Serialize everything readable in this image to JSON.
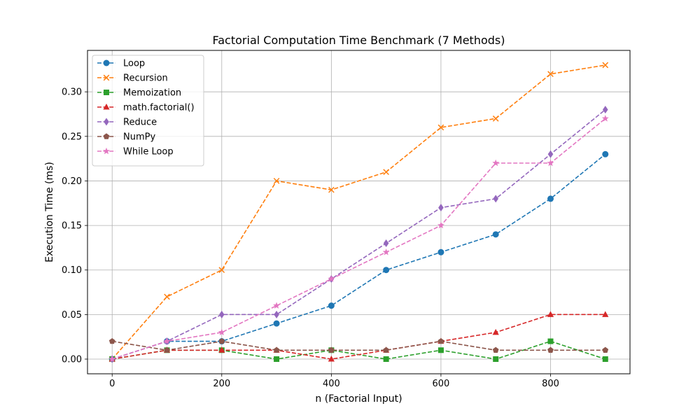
{
  "chart_data": {
    "type": "line",
    "title": "Factorial Computation Time Benchmark (7 Methods)",
    "xlabel": "n (Factorial Input)",
    "ylabel": "Execution Time (ms)",
    "x": [
      0,
      100,
      200,
      300,
      400,
      500,
      600,
      700,
      800,
      900
    ],
    "xlim": [
      -45,
      945
    ],
    "ylim": [
      -0.0165,
      0.3465
    ],
    "xticks": [
      0,
      200,
      400,
      600,
      800
    ],
    "xtick_labels": [
      "0",
      "200",
      "400",
      "600",
      "800"
    ],
    "yticks": [
      0.0,
      0.05,
      0.1,
      0.15,
      0.2,
      0.25,
      0.3
    ],
    "ytick_labels": [
      "0.00",
      "0.05",
      "0.10",
      "0.15",
      "0.20",
      "0.25",
      "0.30"
    ],
    "grid": true,
    "legend_position": "top-left",
    "series": [
      {
        "name": "Loop",
        "color": "#1f77b4",
        "marker": "circle",
        "values": [
          0.0,
          0.02,
          0.02,
          0.04,
          0.06,
          0.1,
          0.12,
          0.14,
          0.18,
          0.23
        ]
      },
      {
        "name": "Recursion",
        "color": "#ff7f0e",
        "marker": "x",
        "values": [
          0.0,
          0.07,
          0.1,
          0.2,
          0.19,
          0.21,
          0.26,
          0.27,
          0.32,
          0.33
        ]
      },
      {
        "name": "Memoization",
        "color": "#2ca02c",
        "marker": "square",
        "values": [
          0.0,
          0.01,
          0.01,
          0.0,
          0.01,
          0.0,
          0.01,
          0.0,
          0.02,
          0.0
        ]
      },
      {
        "name": "math.factorial()",
        "color": "#d62728",
        "marker": "triangle",
        "values": [
          0.0,
          0.01,
          0.01,
          0.01,
          0.0,
          0.01,
          0.02,
          0.03,
          0.05,
          0.05
        ]
      },
      {
        "name": "Reduce",
        "color": "#9467bd",
        "marker": "diamond",
        "values": [
          0.0,
          0.02,
          0.05,
          0.05,
          0.09,
          0.13,
          0.17,
          0.18,
          0.23,
          0.28
        ]
      },
      {
        "name": "NumPy",
        "color": "#8c564b",
        "marker": "pentagon",
        "values": [
          0.02,
          0.01,
          0.02,
          0.01,
          0.01,
          0.01,
          0.02,
          0.01,
          0.01,
          0.01
        ]
      },
      {
        "name": "While Loop",
        "color": "#e377c2",
        "marker": "star",
        "values": [
          0.0,
          0.02,
          0.03,
          0.06,
          0.09,
          0.12,
          0.15,
          0.22,
          0.22,
          0.27
        ]
      }
    ]
  }
}
